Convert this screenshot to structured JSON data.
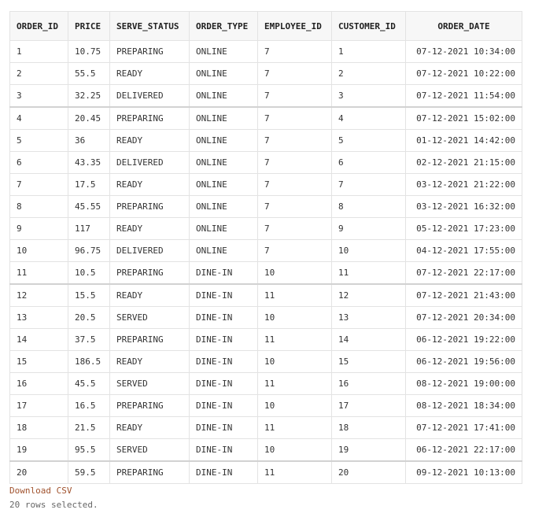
{
  "table": {
    "columns": [
      "ORDER_ID",
      "PRICE",
      "SERVE_STATUS",
      "ORDER_TYPE",
      "EMPLOYEE_ID",
      "CUSTOMER_ID",
      "ORDER_DATE"
    ],
    "rows": [
      [
        "1",
        "10.75",
        "PREPARING",
        "ONLINE",
        "7",
        "1",
        "07-12-2021 10:34:00"
      ],
      [
        "2",
        "55.5",
        "READY",
        "ONLINE",
        "7",
        "2",
        "07-12-2021 10:22:00"
      ],
      [
        "3",
        "32.25",
        "DELIVERED",
        "ONLINE",
        "7",
        "3",
        "07-12-2021 11:54:00"
      ],
      [
        "4",
        "20.45",
        "PREPARING",
        "ONLINE",
        "7",
        "4",
        "07-12-2021 15:02:00"
      ],
      [
        "5",
        "36",
        "READY",
        "ONLINE",
        "7",
        "5",
        "01-12-2021 14:42:00"
      ],
      [
        "6",
        "43.35",
        "DELIVERED",
        "ONLINE",
        "7",
        "6",
        "02-12-2021 21:15:00"
      ],
      [
        "7",
        "17.5",
        "READY",
        "ONLINE",
        "7",
        "7",
        "03-12-2021 21:22:00"
      ],
      [
        "8",
        "45.55",
        "PREPARING",
        "ONLINE",
        "7",
        "8",
        "03-12-2021 16:32:00"
      ],
      [
        "9",
        "117",
        "READY",
        "ONLINE",
        "7",
        "9",
        "05-12-2021 17:23:00"
      ],
      [
        "10",
        "96.75",
        "DELIVERED",
        "ONLINE",
        "7",
        "10",
        "04-12-2021 17:55:00"
      ],
      [
        "11",
        "10.5",
        "PREPARING",
        "DINE-IN",
        "10",
        "11",
        "07-12-2021 22:17:00"
      ],
      [
        "12",
        "15.5",
        "READY",
        "DINE-IN",
        "11",
        "12",
        "07-12-2021 21:43:00"
      ],
      [
        "13",
        "20.5",
        "SERVED",
        "DINE-IN",
        "10",
        "13",
        "07-12-2021 20:34:00"
      ],
      [
        "14",
        "37.5",
        "PREPARING",
        "DINE-IN",
        "11",
        "14",
        "06-12-2021 19:22:00"
      ],
      [
        "15",
        "186.5",
        "READY",
        "DINE-IN",
        "10",
        "15",
        "06-12-2021 19:56:00"
      ],
      [
        "16",
        "45.5",
        "SERVED",
        "DINE-IN",
        "11",
        "16",
        "08-12-2021 19:00:00"
      ],
      [
        "17",
        "16.5",
        "PREPARING",
        "DINE-IN",
        "10",
        "17",
        "08-12-2021 18:34:00"
      ],
      [
        "18",
        "21.5",
        "READY",
        "DINE-IN",
        "11",
        "18",
        "07-12-2021 17:41:00"
      ],
      [
        "19",
        "95.5",
        "SERVED",
        "DINE-IN",
        "10",
        "19",
        "06-12-2021 22:17:00"
      ],
      [
        "20",
        "59.5",
        "PREPARING",
        "DINE-IN",
        "11",
        "20",
        "09-12-2021 10:13:00"
      ]
    ]
  },
  "footer": {
    "download_label": "Download CSV",
    "rows_selected": "20 rows selected."
  },
  "colors": {
    "link": "#a0522d",
    "border": "#e3e3e3",
    "header_bg": "#f7f7f7"
  }
}
